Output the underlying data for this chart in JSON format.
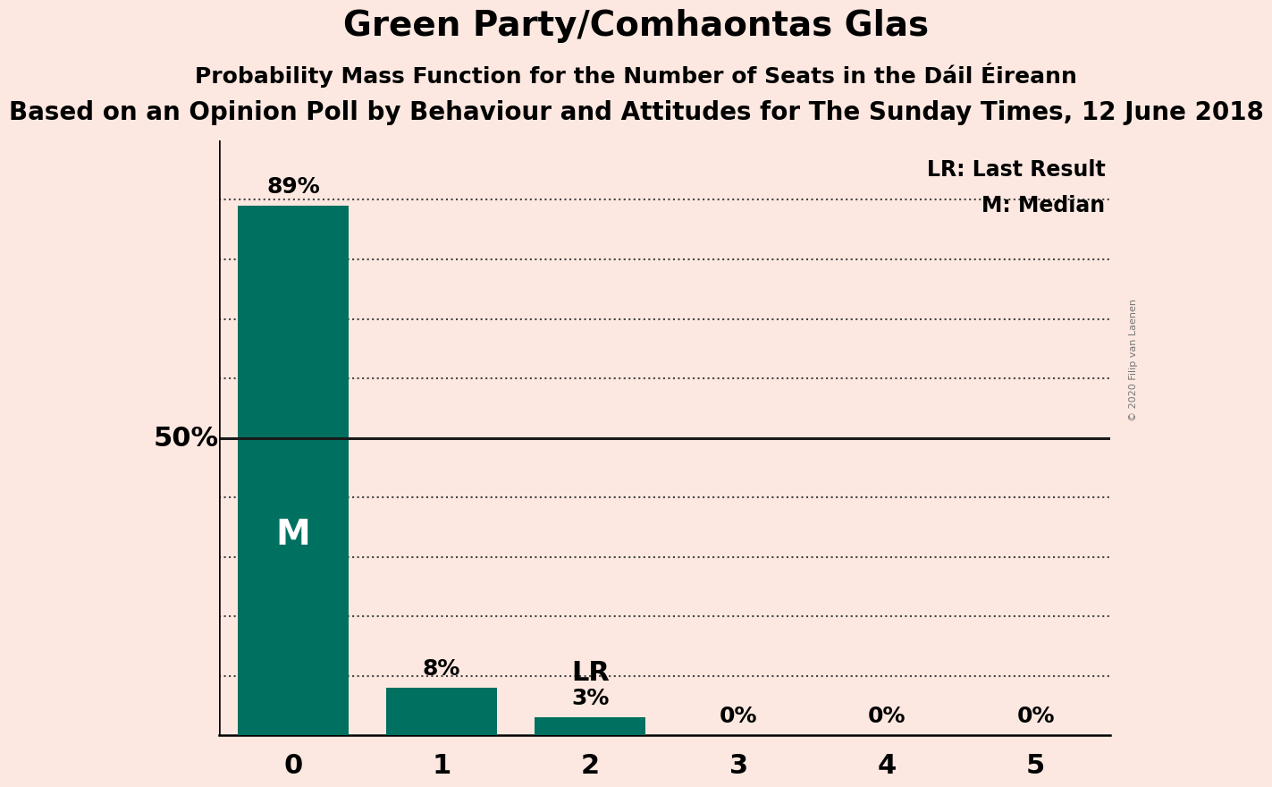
{
  "title": "Green Party/Comhaontas Glas",
  "subtitle": "Probability Mass Function for the Number of Seats in the Dáil Éireann",
  "source_line": "Based on an Opinion Poll by Behaviour and Attitudes for The Sunday Times, 12 June 2018",
  "copyright": "© 2020 Filip van Laenen",
  "categories": [
    0,
    1,
    2,
    3,
    4,
    5
  ],
  "values": [
    0.89,
    0.08,
    0.03,
    0.0,
    0.0,
    0.0
  ],
  "bar_color": "#007060",
  "background_color": "#fce8e0",
  "fifty_pct_line_color": "#1a1a1a",
  "dotted_line_color": "#444444",
  "median_seat": 0,
  "last_result_seat": 2,
  "ylabel_50": "50%",
  "pct_labels": [
    "89%",
    "8%",
    "3%",
    "0%",
    "0%",
    "0%"
  ],
  "legend_lr": "LR: Last Result",
  "legend_m": "M: Median",
  "title_fontsize": 28,
  "subtitle_fontsize": 18,
  "source_fontsize": 20,
  "bar_width": 0.75,
  "ylim": [
    0,
    1.0
  ],
  "dotted_levels": [
    0.1,
    0.2,
    0.3,
    0.4,
    0.6,
    0.7,
    0.8,
    0.9
  ],
  "solid_level": 0.5,
  "median_label_fontsize": 28,
  "lr_label_fontsize": 22,
  "pct_fontsize": 18,
  "tick_fontsize": 22,
  "legend_fontsize": 17,
  "ylabel_fontsize": 22
}
